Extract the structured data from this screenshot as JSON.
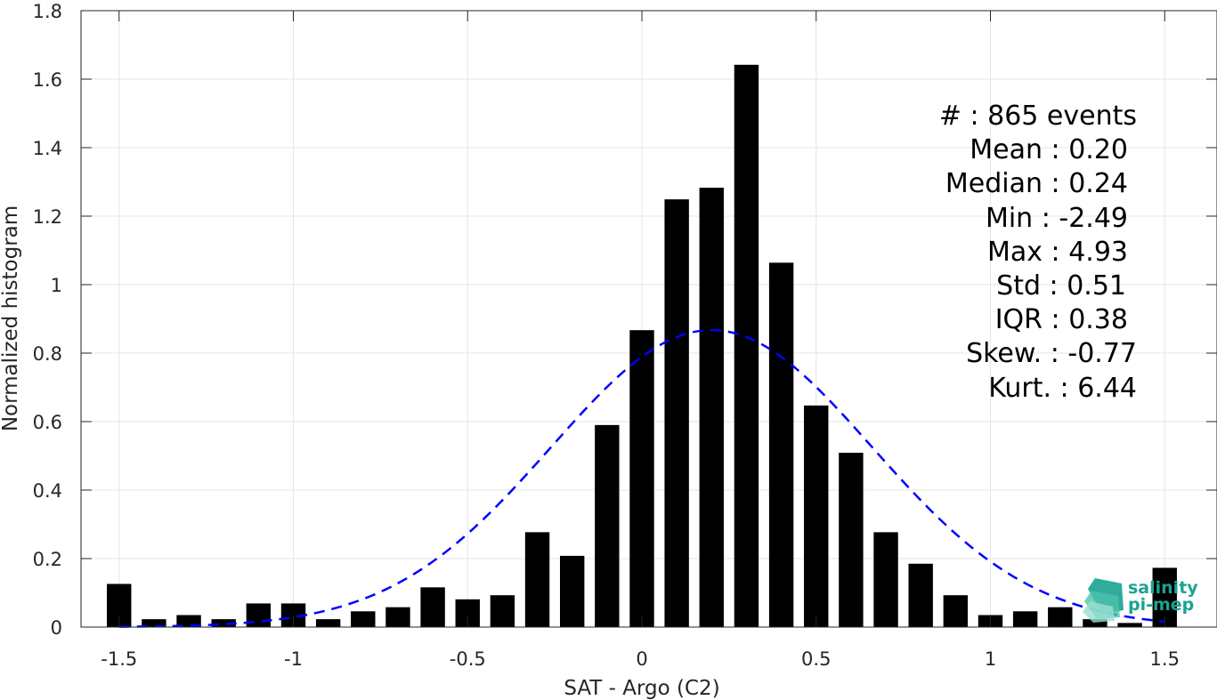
{
  "chart_data": {
    "type": "bar",
    "xlabel": "SAT - Argo (C2)",
    "ylabel": "Normalized histogram",
    "xlim": [
      -1.6,
      1.6
    ],
    "ylim": [
      0,
      1.8
    ],
    "grid": true,
    "x_ticks": [
      -1.5,
      -1,
      -0.5,
      0,
      0.5,
      1,
      1.5
    ],
    "x_tick_labels": [
      "-1.5",
      "-1",
      "-0.5",
      "0",
      "0.5",
      "1",
      "1.5"
    ],
    "y_ticks": [
      0,
      0.2,
      0.4,
      0.6,
      0.8,
      1,
      1.2,
      1.4,
      1.6,
      1.8
    ],
    "y_tick_labels": [
      "0",
      "0.2",
      "0.4",
      "0.6",
      "0.8",
      "1",
      "1.2",
      "1.4",
      "1.6",
      "1.8"
    ],
    "bin_width": 0.1,
    "bar_color": "#000000",
    "bars": [
      {
        "x": -1.5,
        "value": 0.126
      },
      {
        "x": -1.4,
        "value": 0.023
      },
      {
        "x": -1.3,
        "value": 0.035
      },
      {
        "x": -1.2,
        "value": 0.023
      },
      {
        "x": -1.1,
        "value": 0.069
      },
      {
        "x": -1.0,
        "value": 0.069
      },
      {
        "x": -0.9,
        "value": 0.023
      },
      {
        "x": -0.8,
        "value": 0.046
      },
      {
        "x": -0.7,
        "value": 0.058
      },
      {
        "x": -0.6,
        "value": 0.116
      },
      {
        "x": -0.5,
        "value": 0.081
      },
      {
        "x": -0.4,
        "value": 0.093
      },
      {
        "x": -0.3,
        "value": 0.277
      },
      {
        "x": -0.2,
        "value": 0.208
      },
      {
        "x": -0.1,
        "value": 0.59
      },
      {
        "x": 0.0,
        "value": 0.867
      },
      {
        "x": 0.1,
        "value": 1.249
      },
      {
        "x": 0.2,
        "value": 1.283
      },
      {
        "x": 0.3,
        "value": 1.642
      },
      {
        "x": 0.4,
        "value": 1.064
      },
      {
        "x": 0.5,
        "value": 0.647
      },
      {
        "x": 0.6,
        "value": 0.509
      },
      {
        "x": 0.7,
        "value": 0.277
      },
      {
        "x": 0.8,
        "value": 0.185
      },
      {
        "x": 0.9,
        "value": 0.093
      },
      {
        "x": 1.0,
        "value": 0.035
      },
      {
        "x": 1.1,
        "value": 0.046
      },
      {
        "x": 1.2,
        "value": 0.058
      },
      {
        "x": 1.3,
        "value": 0.023
      },
      {
        "x": 1.4,
        "value": 0.012
      },
      {
        "x": 1.5,
        "value": 0.173
      }
    ],
    "fit_curve": {
      "type": "gaussian",
      "mean": 0.2,
      "std": 0.46,
      "color": "#0000ff",
      "style": "dashed",
      "x_range": [
        -1.5,
        1.5
      ]
    },
    "annotations": [
      "#  : 865 events",
      "Mean : 0.20",
      "Median : 0.24",
      "Min : -2.49",
      "Max : 4.93",
      "Std : 0.51",
      "IQR : 0.38",
      "Skew. : -0.77",
      "Kurt. : 6.44"
    ],
    "logo": {
      "line1": "salinity",
      "line2": "pi-mep",
      "color": "#1aa391"
    }
  }
}
